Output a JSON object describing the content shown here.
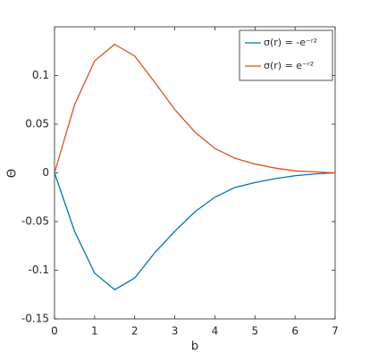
{
  "chart_data": {
    "type": "line",
    "xlabel": "b",
    "ylabel": "Θ",
    "x": [
      0,
      0.5,
      1,
      1.5,
      2,
      2.5,
      3,
      3.5,
      4,
      4.5,
      5,
      5.5,
      6,
      6.5,
      7
    ],
    "series": [
      {
        "name": "σ(r) = -e⁻ʳ²",
        "color": "#0072bd",
        "values": [
          0,
          -0.06,
          -0.103,
          -0.12,
          -0.108,
          -0.082,
          -0.06,
          -0.04,
          -0.025,
          -0.015,
          -0.01,
          -0.006,
          -0.003,
          -0.001,
          0
        ]
      },
      {
        "name": "σ(r) = e⁻ʳ²",
        "color": "#d95319",
        "values": [
          0,
          0.07,
          0.115,
          0.132,
          0.12,
          0.093,
          0.065,
          0.042,
          0.025,
          0.015,
          0.009,
          0.005,
          0.002,
          0.001,
          0
        ]
      }
    ],
    "xlim": [
      0,
      7
    ],
    "xticks": [
      0,
      1,
      2,
      3,
      4,
      5,
      6,
      7
    ],
    "ylim": [
      -0.15,
      0.15
    ],
    "yticks": [
      -0.15,
      -0.1,
      -0.05,
      0,
      0.05,
      0.1
    ],
    "grid": false,
    "legend": "northeast"
  }
}
